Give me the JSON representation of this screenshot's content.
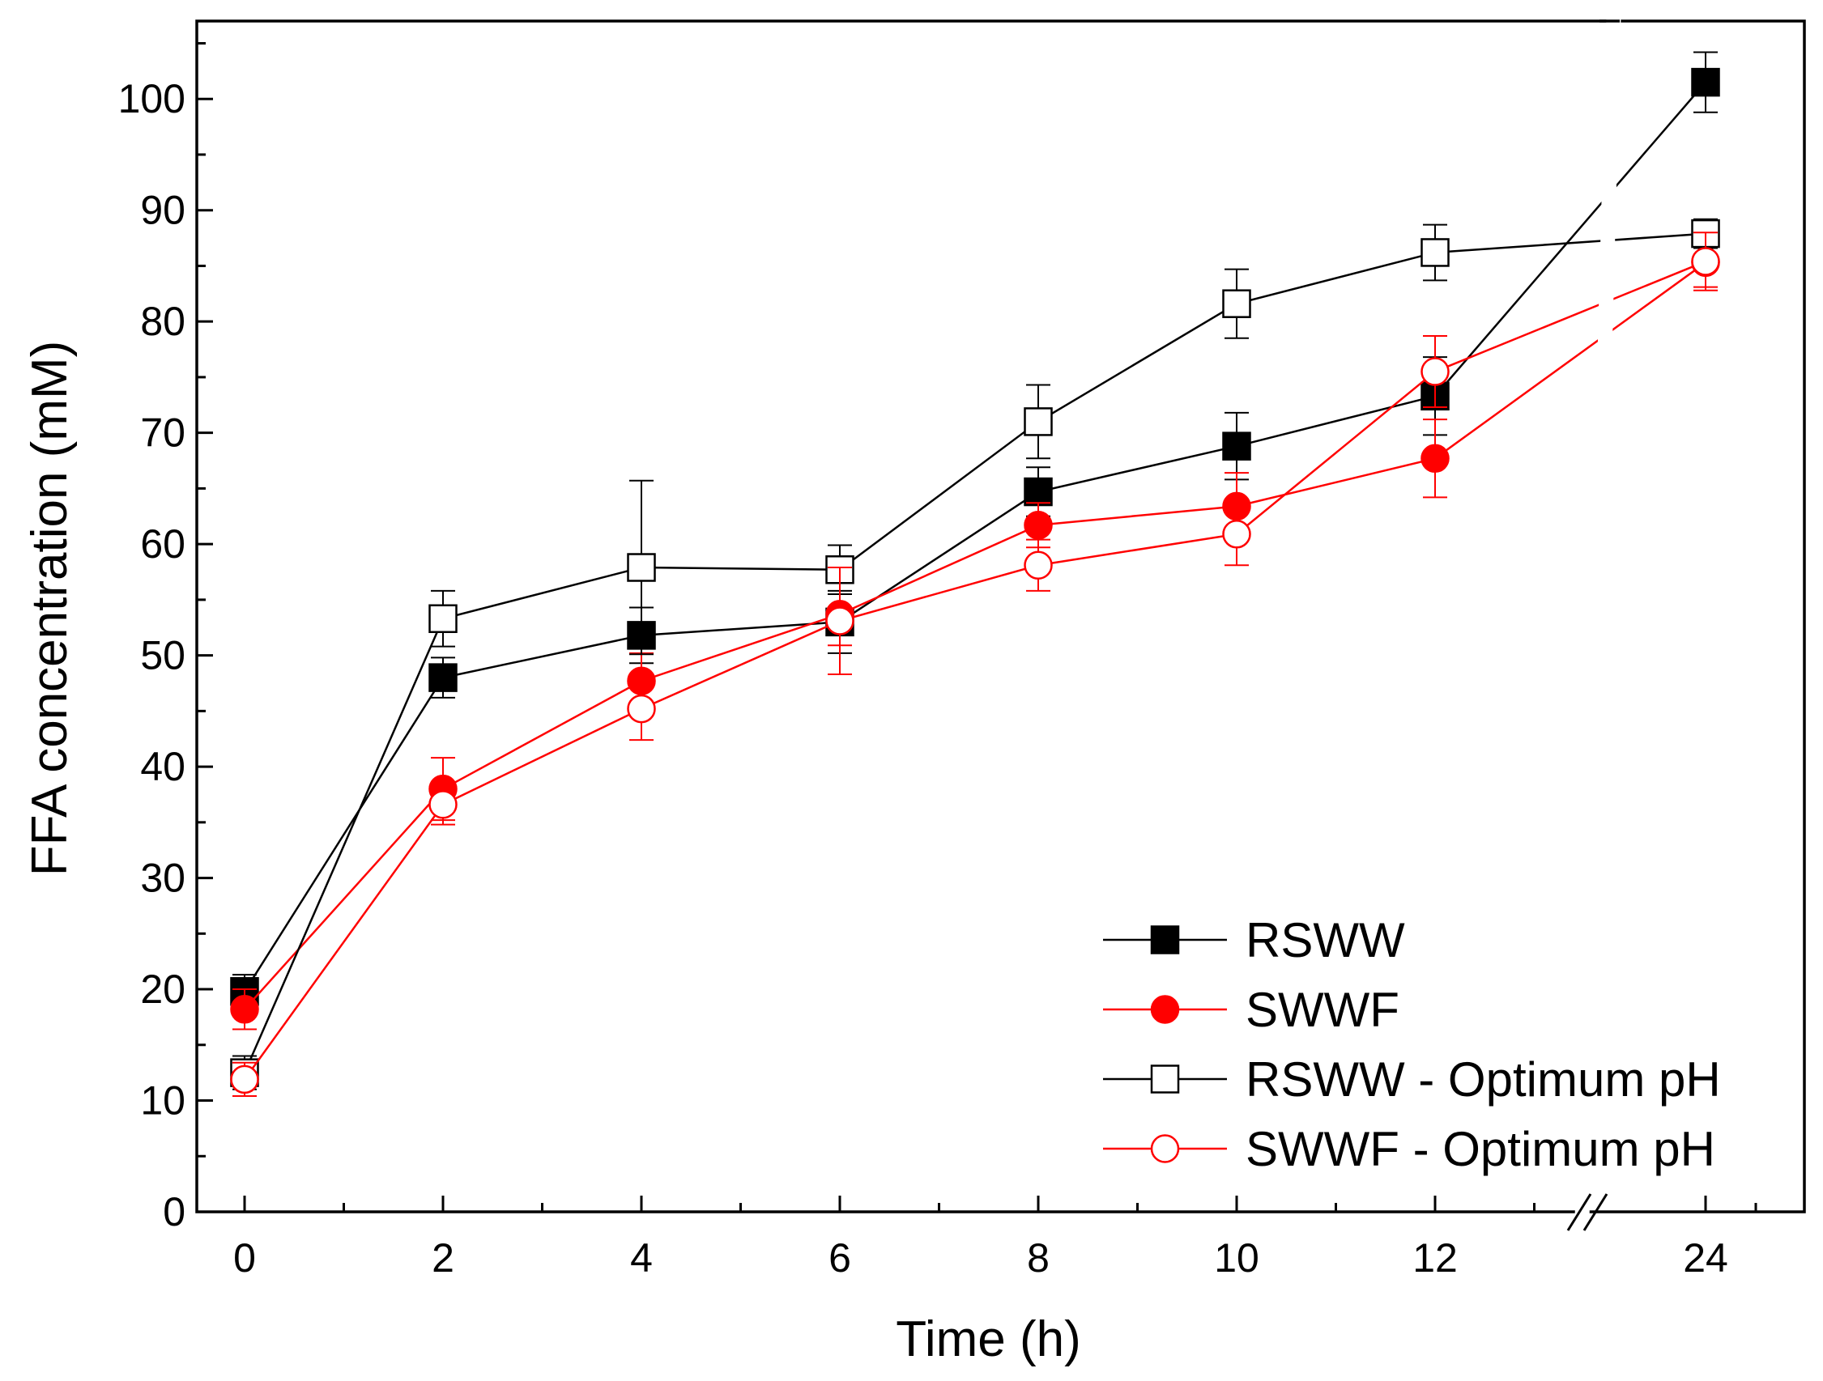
{
  "chart_data": {
    "type": "line",
    "title": "",
    "xlabel": "Time (h)",
    "ylabel": "FFA concentration (mM)",
    "x": [
      0,
      2,
      4,
      6,
      8,
      10,
      12,
      24
    ],
    "x_tick_labels": [
      "0",
      "2",
      "4",
      "6",
      "8",
      "10",
      "12",
      "24"
    ],
    "y_ticks": [
      0,
      10,
      20,
      30,
      40,
      50,
      60,
      70,
      80,
      90,
      100
    ],
    "ylim": [
      0,
      107
    ],
    "axis_break": "between 12 and 24",
    "grid": false,
    "legend_position": "bottom-right",
    "series": [
      {
        "name": "RSWW",
        "color": "#000000",
        "marker": "square-filled",
        "values": [
          19.8,
          48.0,
          51.8,
          53.0,
          64.7,
          68.8,
          73.3,
          101.5
        ],
        "errors": [
          1.5,
          1.8,
          2.5,
          2.8,
          2.2,
          3.0,
          3.5,
          2.7
        ]
      },
      {
        "name": "SWWF",
        "color": "#ff0000",
        "marker": "circle-filled",
        "values": [
          18.2,
          38.0,
          47.7,
          53.7,
          61.7,
          63.4,
          67.7,
          85.3
        ],
        "errors": [
          1.8,
          2.8,
          2.5,
          2.8,
          2.0,
          3.0,
          3.5,
          2.2
        ]
      },
      {
        "name": "RSWW - Optimum pH",
        "color": "#000000",
        "marker": "square-open",
        "values": [
          12.5,
          53.3,
          57.9,
          57.7,
          71.0,
          81.6,
          86.2,
          87.9
        ],
        "errors": [
          1.5,
          2.5,
          7.8,
          2.2,
          3.3,
          3.1,
          2.5,
          1.3
        ]
      },
      {
        "name": "SWWF - Optimum pH",
        "color": "#ff0000",
        "marker": "circle-open",
        "values": [
          11.9,
          36.6,
          45.2,
          53.1,
          58.1,
          60.9,
          75.5,
          85.4
        ],
        "errors": [
          1.5,
          1.8,
          2.8,
          4.8,
          2.3,
          2.8,
          3.2,
          2.6
        ]
      }
    ]
  }
}
